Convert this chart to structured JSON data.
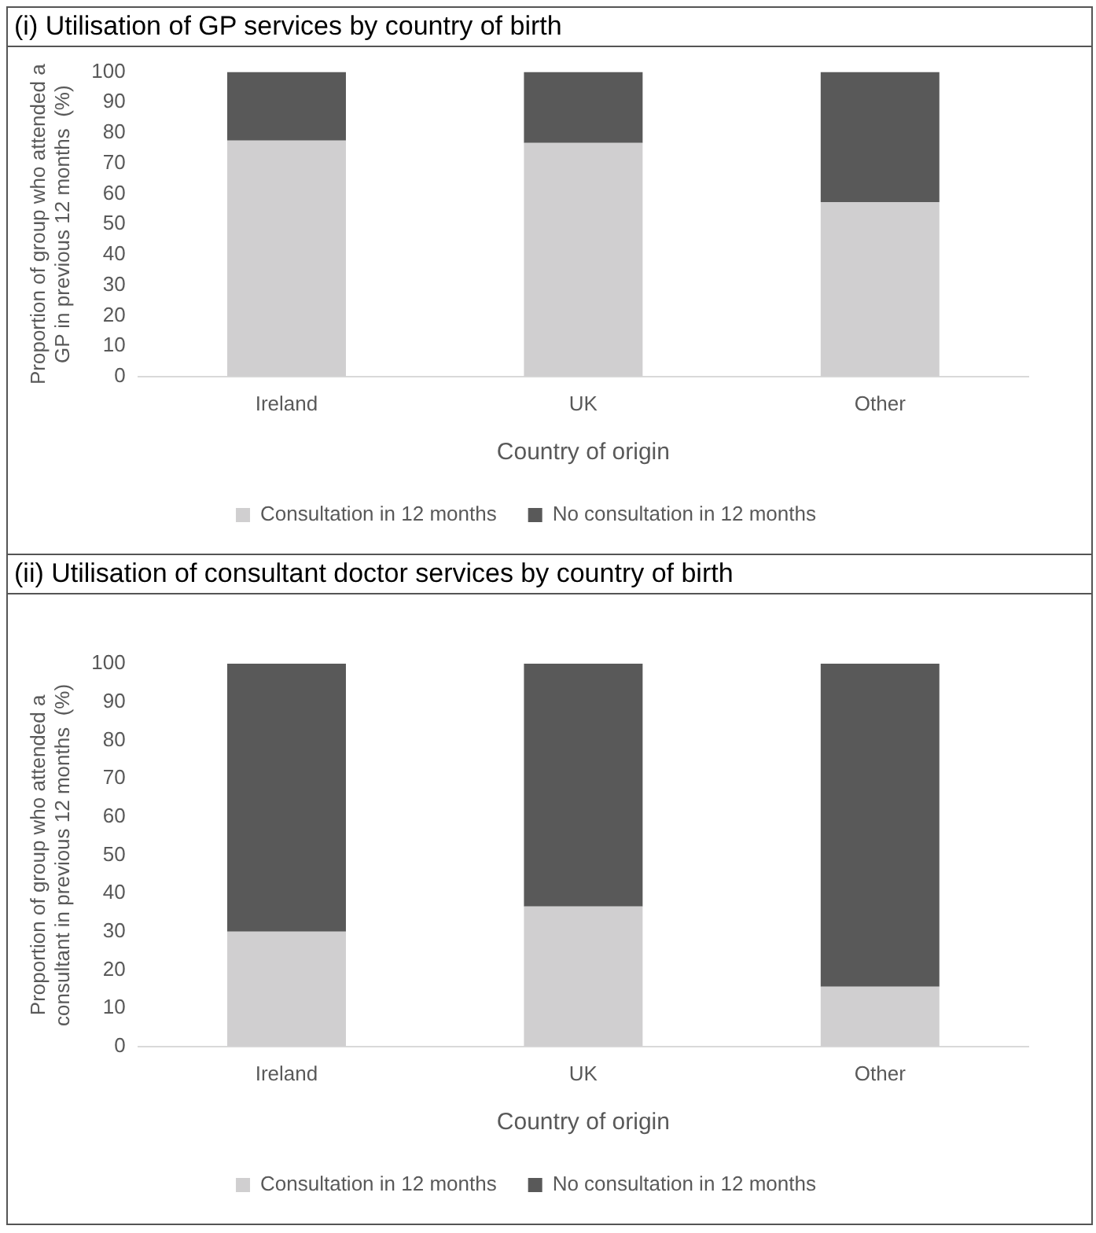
{
  "chart_data": [
    {
      "type": "bar",
      "title": "(i) Utilisation of GP services by country of birth",
      "xlabel": "Country of origin",
      "ylabel": "Proportion of group who attended a\nGP in previous 12 months  (%)",
      "categories": [
        "Ireland",
        "UK",
        "Other"
      ],
      "stacked": true,
      "ylim": [
        0,
        100
      ],
      "yticks": [
        0,
        10,
        20,
        30,
        40,
        50,
        60,
        70,
        80,
        90,
        100
      ],
      "grid": false,
      "legend": "bottom",
      "series": [
        {
          "name": "Consultation in 12 months",
          "color": "#d0cfd0",
          "values": [
            77.5,
            76.7,
            57.3
          ]
        },
        {
          "name": "No consultation in 12 months",
          "color": "#595959",
          "values": [
            22.5,
            23.3,
            42.7
          ]
        }
      ]
    },
    {
      "type": "bar",
      "title": "(ii) Utilisation of consultant doctor services by country of birth",
      "xlabel": "Country of origin",
      "ylabel": "Proportion of group who attended a\nconsultant in previous 12 months  (%)",
      "categories": [
        "Ireland",
        "UK",
        "Other"
      ],
      "stacked": true,
      "ylim": [
        0,
        100
      ],
      "yticks": [
        0,
        10,
        20,
        30,
        40,
        50,
        60,
        70,
        80,
        90,
        100
      ],
      "grid": false,
      "legend": "bottom",
      "series": [
        {
          "name": "Consultation in 12 months",
          "color": "#d0cfd0",
          "values": [
            30,
            36.6,
            15.6
          ]
        },
        {
          "name": "No consultation in 12 months",
          "color": "#595959",
          "values": [
            70,
            63.4,
            84.4
          ]
        }
      ]
    }
  ]
}
